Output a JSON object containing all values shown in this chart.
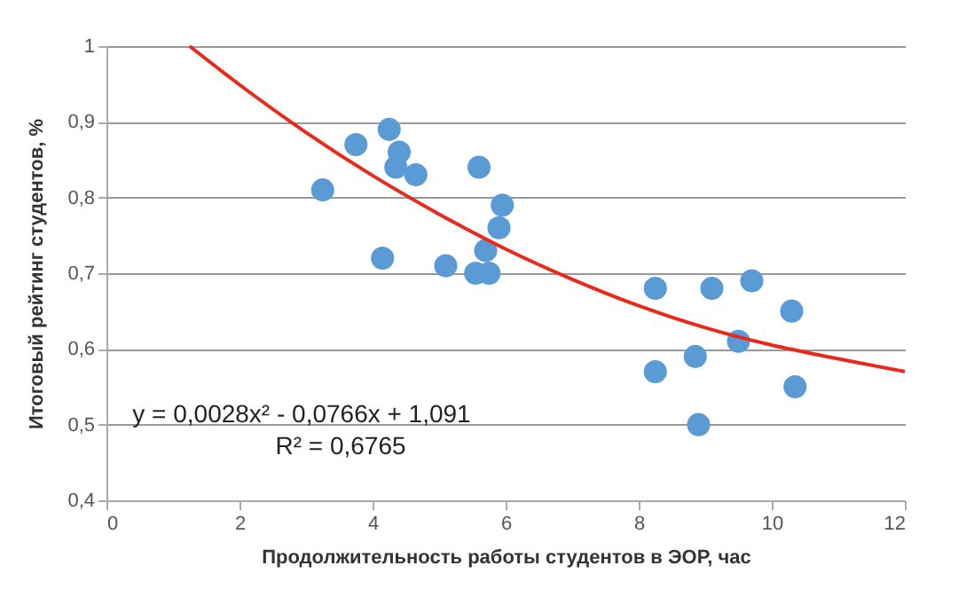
{
  "chart_data": {
    "type": "scatter",
    "xlabel": "Продолжительность  работы  студентов  в ЭОР, час",
    "ylabel": "Итоговый  рейтинг  студентов, %",
    "xlim": [
      0,
      12
    ],
    "xticks": [
      0,
      2,
      4,
      6,
      8,
      10,
      12
    ],
    "ylim": [
      0.4,
      1
    ],
    "yticks": [
      {
        "value": 0.4,
        "label": "0,4"
      },
      {
        "value": 0.5,
        "label": "0,5"
      },
      {
        "value": 0.6,
        "label": "0,6"
      },
      {
        "value": 0.7,
        "label": "0,7"
      },
      {
        "value": 0.8,
        "label": "0,8"
      },
      {
        "value": 0.9,
        "label": "0,9"
      },
      {
        "value": 1,
        "label": "1"
      }
    ],
    "grid": "y",
    "annotations": [
      "y = 0,0028x² - 0,0766x + 1,091",
      "R² = 0,6765"
    ],
    "series": [
      {
        "marker": "circle",
        "color": "#5b9bd5",
        "x": [
          3.25,
          3.75,
          4.15,
          4.25,
          4.35,
          4.4,
          4.65,
          5.1,
          5.55,
          5.6,
          5.7,
          5.75,
          5.9,
          5.95,
          8.25,
          8.25,
          8.85,
          8.9,
          9.1,
          9.5,
          9.7,
          10.3,
          10.35
        ],
        "values": [
          0.81,
          0.87,
          0.72,
          0.89,
          0.84,
          0.86,
          0.83,
          0.71,
          0.7,
          0.84,
          0.73,
          0.7,
          0.76,
          0.79,
          0.68,
          0.57,
          0.59,
          0.5,
          0.68,
          0.61,
          0.69,
          0.65,
          0.55
        ]
      },
      {
        "type": "line",
        "marker": "none",
        "color": "#e8291c",
        "x": [
          1.25,
          2,
          3,
          4,
          5,
          6,
          7,
          8,
          9,
          10,
          11,
          12
        ],
        "values": [
          1.0,
          0.949,
          0.886,
          0.829,
          0.778,
          0.732,
          0.692,
          0.657,
          0.628,
          0.605,
          0.587,
          0.57
        ]
      }
    ]
  }
}
